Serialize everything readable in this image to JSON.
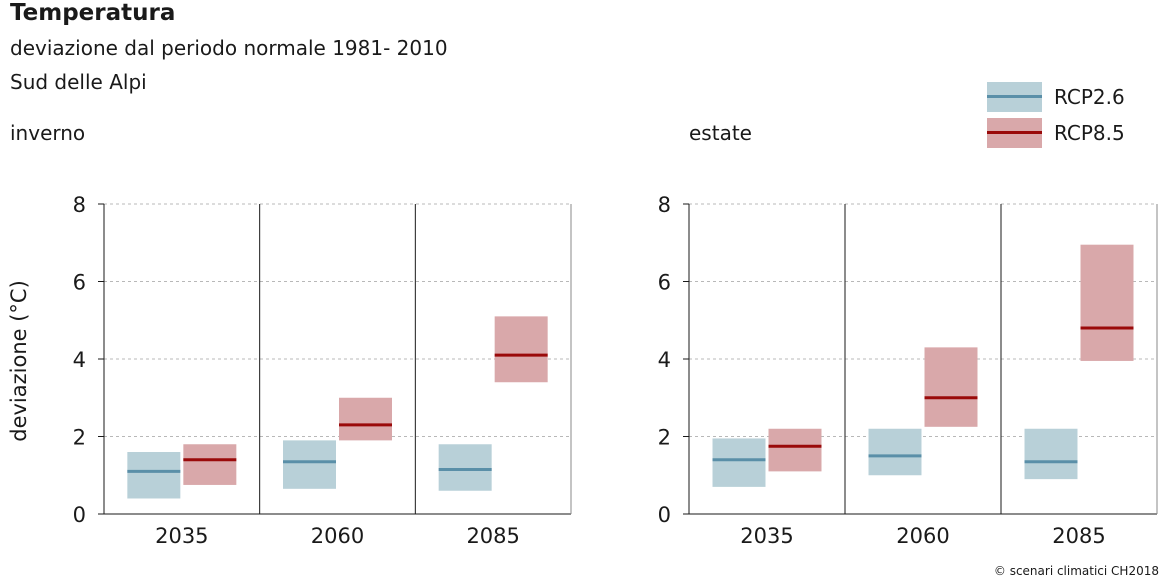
{
  "header": {
    "title": "Temperatura",
    "subtitle": "deviazione dal periodo normale 1981- 2010",
    "region": "Sud delle Alpi"
  },
  "credit": "© scenari climatici CH2018",
  "colors": {
    "rcp26_fill": "#b8d0d8",
    "rcp26_line": "#5a8fa8",
    "rcp85_fill": "#d9a8aa",
    "rcp85_line": "#9a0a0a",
    "grid": "#b8b8b8",
    "axis": "#1a1a1a"
  },
  "legend": [
    {
      "key": "rcp26",
      "label": "RCP2.6"
    },
    {
      "key": "rcp85",
      "label": "RCP8.5"
    }
  ],
  "chart_data": [
    {
      "type": "bar",
      "title": "inverno",
      "ylabel": "deviazione (°C)",
      "xlabel": "",
      "ylim": [
        0,
        8
      ],
      "yticks": [
        0,
        2,
        4,
        6,
        8
      ],
      "categories": [
        "2035",
        "2060",
        "2085"
      ],
      "series": [
        {
          "name": "RCP2.6",
          "low": [
            0.4,
            0.65,
            0.6
          ],
          "median": [
            1.1,
            1.35,
            1.15
          ],
          "high": [
            1.6,
            1.9,
            1.8
          ]
        },
        {
          "name": "RCP8.5",
          "low": [
            0.75,
            1.9,
            3.4
          ],
          "median": [
            1.4,
            2.3,
            4.1
          ],
          "high": [
            1.8,
            3.0,
            5.1
          ]
        }
      ]
    },
    {
      "type": "bar",
      "title": "estate",
      "ylabel": "",
      "xlabel": "",
      "ylim": [
        0,
        8
      ],
      "yticks": [
        0,
        2,
        4,
        6,
        8
      ],
      "categories": [
        "2035",
        "2060",
        "2085"
      ],
      "series": [
        {
          "name": "RCP2.6",
          "low": [
            0.7,
            1.0,
            0.9
          ],
          "median": [
            1.4,
            1.5,
            1.35
          ],
          "high": [
            1.95,
            2.2,
            2.2
          ]
        },
        {
          "name": "RCP8.5",
          "low": [
            1.1,
            2.25,
            3.95
          ],
          "median": [
            1.75,
            3.0,
            4.8
          ],
          "high": [
            2.2,
            4.3,
            6.95
          ]
        }
      ]
    }
  ]
}
